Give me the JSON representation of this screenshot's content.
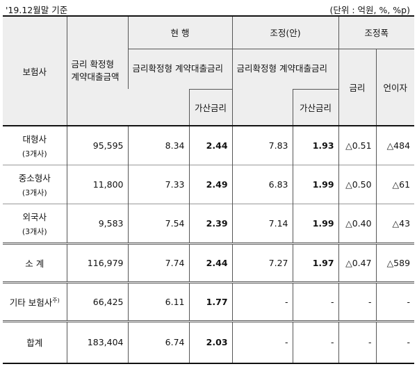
{
  "header_note": {
    "date": "'19.12월말 기준",
    "unit": "(단위 : 억원, %, %p)"
  },
  "columns": {
    "insurer": "보험사",
    "loan_amount": "금리 확정형 계약대출금액",
    "current": "현 행",
    "adjusted": "조정(안)",
    "change": "조정폭",
    "contract_rate": "금리확정형 계약대출금리",
    "spread": "가산금리",
    "rate": "금리",
    "interest_income": "언이자"
  },
  "rows": [
    {
      "name": "대형사",
      "sub": "(3개사)",
      "amount": "95,595",
      "cur_rate": "8.34",
      "cur_spread": "2.44",
      "adj_rate": "7.83",
      "adj_spread": "1.93",
      "d_rate": "△0.51",
      "d_income": "△484"
    },
    {
      "name": "중소형사",
      "sub": "(3개사)",
      "amount": "11,800",
      "cur_rate": "7.33",
      "cur_spread": "2.49",
      "adj_rate": "6.83",
      "adj_spread": "1.99",
      "d_rate": "△0.50",
      "d_income": "△61"
    },
    {
      "name": "외국사",
      "sub": "(3개사)",
      "amount": "9,583",
      "cur_rate": "7.54",
      "cur_spread": "2.39",
      "adj_rate": "7.14",
      "adj_spread": "1.99",
      "d_rate": "△0.40",
      "d_income": "△43"
    },
    {
      "name": "소 계",
      "sub": "",
      "amount": "116,979",
      "cur_rate": "7.74",
      "cur_spread": "2.44",
      "adj_rate": "7.27",
      "adj_spread": "1.97",
      "d_rate": "△0.47",
      "d_income": "△589"
    },
    {
      "name": "기타 보험사",
      "sup": "주)",
      "sub": "",
      "amount": "66,425",
      "cur_rate": "6.11",
      "cur_spread": "1.77",
      "adj_rate": "-",
      "adj_spread": "-",
      "d_rate": "-",
      "d_income": "-"
    },
    {
      "name": "합계",
      "sub": "",
      "amount": "183,404",
      "cur_rate": "6.74",
      "cur_spread": "2.03",
      "adj_rate": "-",
      "adj_spread": "-",
      "d_rate": "-",
      "d_income": "-"
    }
  ]
}
